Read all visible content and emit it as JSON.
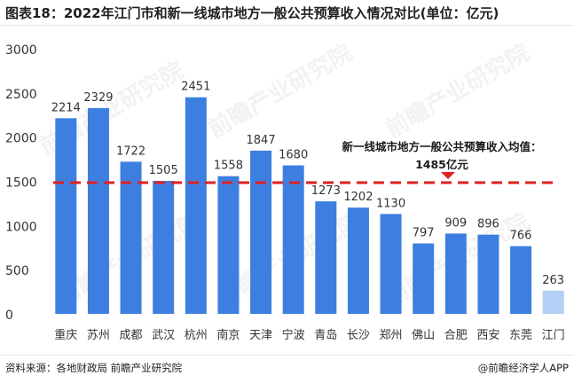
{
  "title": "图表18：2022年江门市和新一线城市地方一般公共预算收入情况对比(单位：亿元)",
  "source": "资料来源：各地财政局 前瞻产业研究院",
  "brand": "@前瞻经济学人APP",
  "watermark": "前瞻产业研究院",
  "chart_data": {
    "type": "bar",
    "title": "图表18：2022年江门市和新一线城市地方一般公共预算收入情况对比(单位：亿元)",
    "categories": [
      "重庆",
      "苏州",
      "成都",
      "武汉",
      "杭州",
      "南京",
      "天津",
      "宁波",
      "青岛",
      "长沙",
      "郑州",
      "佛山",
      "合肥",
      "西安",
      "东莞",
      "江门"
    ],
    "values": [
      2214,
      2329,
      1722,
      1505,
      2451,
      1558,
      1847,
      1680,
      1273,
      1202,
      1130,
      797,
      909,
      896,
      766,
      263
    ],
    "value_labels": [
      "2214",
      "2329",
      "1722",
      "1505",
      "2451",
      "1558",
      "1847",
      "1680",
      "1273",
      "1202",
      "1130",
      "797",
      "909",
      "896",
      "766",
      "263"
    ],
    "ylim": [
      0,
      3000
    ],
    "yticks": [
      0,
      500,
      1000,
      1500,
      2000,
      2500,
      3000
    ],
    "ytick_labels": [
      "0",
      "500",
      "1000",
      "1500",
      "2000",
      "2500",
      "3000"
    ],
    "xlabel": "",
    "ylabel": "",
    "grid": false,
    "legend": "none",
    "reference_line": {
      "value": 1485,
      "label_line1": "新一线城市地方一般公共预算收入均值：",
      "label_line2": "1485亿元",
      "style": "dashed",
      "color": "#e02020"
    },
    "colors": {
      "bar": "#3d7fe0",
      "highlight_bar": "#b3cff5",
      "highlight_category": "江门",
      "reference": "#e02020",
      "text": "#333333"
    }
  }
}
